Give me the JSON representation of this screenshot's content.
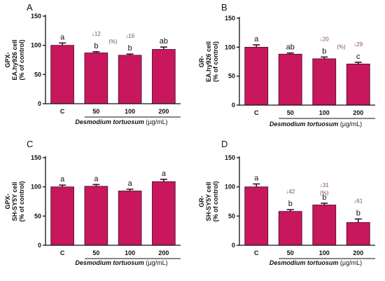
{
  "chart_data": [
    {
      "type": "bar",
      "panel": "A",
      "categories": [
        "C",
        "50",
        "100",
        "200"
      ],
      "values": [
        100,
        87,
        83,
        93
      ],
      "errors": [
        4,
        2,
        2,
        4
      ],
      "ylim": [
        0,
        150
      ],
      "yticks": [
        "0",
        "50",
        "100",
        "150"
      ],
      "ylabel": [
        "GPX-",
        "EA.hy926 cell",
        "(% of control)"
      ],
      "xlabel_species": "Desmodium tortuosum",
      "xlabel_unit": "(µg/mL)",
      "letters": [
        "a",
        "b",
        "b",
        "ab"
      ],
      "reductions": [
        "",
        "↓12",
        "↓16",
        ""
      ],
      "percent_label": "(%)",
      "bar_color": "#c8175d",
      "error_color": "#3d0b2b"
    },
    {
      "type": "bar",
      "panel": "B",
      "categories": [
        "C",
        "50",
        "100",
        "200"
      ],
      "values": [
        100,
        88,
        80,
        71
      ],
      "errors": [
        4,
        2,
        3,
        3
      ],
      "ylim": [
        0,
        150
      ],
      "yticks": [
        "0",
        "50",
        "100",
        "150"
      ],
      "ylabel": [
        "GR-",
        "EA.hy926 cell",
        "(% of control)"
      ],
      "xlabel_species": "Desmodium tortuosum",
      "xlabel_unit": "(µg/mL)",
      "letters": [
        "a",
        "ab",
        "b",
        "c"
      ],
      "reductions": [
        "",
        "",
        "↓20",
        "↓29"
      ],
      "percent_label": "(%)",
      "bar_color": "#c8175d",
      "error_color": "#3d0b2b"
    },
    {
      "type": "bar",
      "panel": "C",
      "categories": [
        "C",
        "50",
        "100",
        "200"
      ],
      "values": [
        100,
        101,
        93,
        109
      ],
      "errors": [
        3,
        3,
        3,
        4
      ],
      "ylim": [
        0,
        150
      ],
      "yticks": [
        "0",
        "50",
        "100",
        "150"
      ],
      "ylabel": [
        "GPX-",
        "SH-SY5Y cell",
        "(% of control)"
      ],
      "xlabel_species": "Desmodium tortuosum",
      "xlabel_unit": "(µg/mL)",
      "letters": [
        "a",
        "a",
        "a",
        "a"
      ],
      "reductions": [
        "",
        "",
        "",
        ""
      ],
      "percent_label": "",
      "bar_color": "#c8175d",
      "error_color": "#3d0b2b"
    },
    {
      "type": "bar",
      "panel": "D",
      "categories": [
        "C",
        "50",
        "100",
        "200"
      ],
      "values": [
        100,
        58,
        69,
        39
      ],
      "errors": [
        5,
        3,
        3,
        6
      ],
      "ylim": [
        0,
        150
      ],
      "yticks": [
        "0",
        "50",
        "100",
        "150"
      ],
      "ylabel": [
        "GR-",
        "SH-SY5Y cell",
        "(% of control)"
      ],
      "xlabel_species": "Desmodium tortuosum",
      "xlabel_unit": "(µg/mL)",
      "letters": [
        "a",
        "b",
        "b",
        "b"
      ],
      "reductions": [
        "",
        "↓42",
        "↓31",
        "↓61"
      ],
      "percent_label": "(%)",
      "bar_color": "#c8175d",
      "error_color": "#3d0b2b"
    }
  ]
}
